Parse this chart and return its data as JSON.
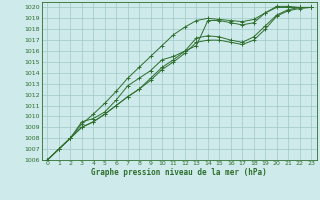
{
  "title": "Graphe pression niveau de la mer (hPa)",
  "background_color": "#ceeaea",
  "grid_color": "#9ec8c8",
  "line_color": "#2d6e2d",
  "xlim": [
    -0.5,
    23.5
  ],
  "ylim": [
    1006,
    1020.5
  ],
  "xticks": [
    0,
    1,
    2,
    3,
    4,
    5,
    6,
    7,
    8,
    9,
    10,
    11,
    12,
    13,
    14,
    15,
    16,
    17,
    18,
    19,
    20,
    21,
    22,
    23
  ],
  "yticks": [
    1006,
    1007,
    1008,
    1009,
    1010,
    1011,
    1012,
    1013,
    1014,
    1015,
    1016,
    1017,
    1018,
    1019,
    1020
  ],
  "series": [
    [
      1006.0,
      1007.0,
      1008.0,
      1009.5,
      1009.8,
      1010.4,
      1011.5,
      1012.8,
      1013.5,
      1014.2,
      1015.2,
      1015.5,
      1016.0,
      1016.5,
      1018.8,
      1018.8,
      1018.6,
      1018.4,
      1018.6,
      1019.5,
      1020.1,
      1020.1,
      1020.0,
      1020.0
    ],
    [
      1006.0,
      1007.0,
      1008.0,
      1009.0,
      1009.5,
      1010.2,
      1011.0,
      1011.8,
      1012.5,
      1013.5,
      1014.5,
      1015.2,
      1016.0,
      1017.2,
      1017.4,
      1017.3,
      1017.0,
      1016.8,
      1017.3,
      1018.3,
      1019.3,
      1019.8,
      1020.0,
      1020.0
    ],
    [
      1006.0,
      1007.0,
      1008.0,
      1009.0,
      1009.5,
      1010.2,
      1011.0,
      1011.8,
      1012.5,
      1013.3,
      1014.3,
      1015.0,
      1015.8,
      1016.8,
      1017.0,
      1017.0,
      1016.8,
      1016.6,
      1017.0,
      1018.0,
      1019.2,
      1019.7,
      1019.9,
      1020.0
    ],
    [
      1006.0,
      1007.0,
      1008.0,
      1009.3,
      1010.2,
      1011.2,
      1012.3,
      1013.5,
      1014.5,
      1015.5,
      1016.5,
      1017.5,
      1018.2,
      1018.8,
      1019.0,
      1018.9,
      1018.8,
      1018.7,
      1018.9,
      1019.5,
      1020.0,
      1020.0,
      1020.0,
      1020.0
    ]
  ]
}
